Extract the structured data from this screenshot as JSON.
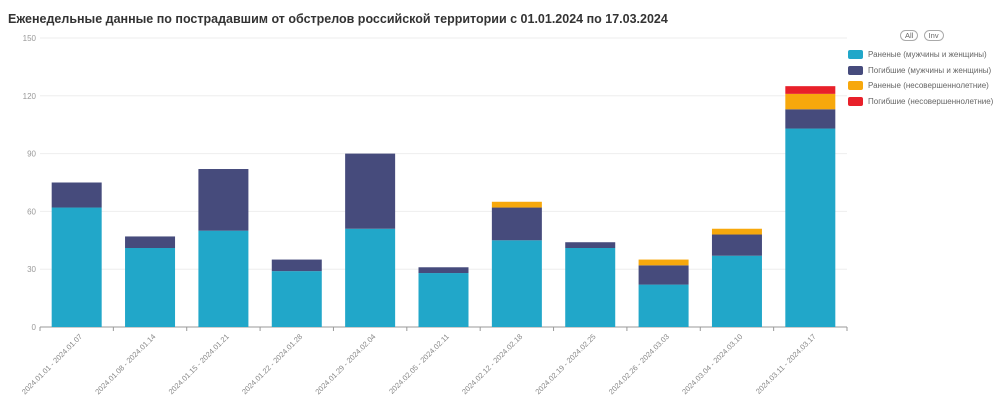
{
  "title": "Еженедельные данные по пострадавшим от обстрелов российской территории с 01.01.2024 по 17.03.2024",
  "legend_buttons": {
    "all": "All",
    "inv": "Inv"
  },
  "chart_data": {
    "type": "bar",
    "stacked": true,
    "title": "Еженедельные данные по пострадавшим от обстрелов российской территории с 01.01.2024 по 17.03.2024",
    "xlabel": "",
    "ylabel": "",
    "ylim": [
      0,
      150
    ],
    "yticks": [
      0,
      30,
      60,
      90,
      120,
      150
    ],
    "grid": true,
    "legend_placement": "top-right",
    "categories": [
      "2024.01.01 - 2024.01.07",
      "2024.01.08 - 2024.01.14",
      "2024.01.15 - 2024.01.21",
      "2024.01.22 - 2024.01.28",
      "2024.01.29 - 2024.02.04",
      "2024.02.05 - 2024.02.11",
      "2024.02.12 - 2024.02.18",
      "2024.02.19 - 2024.02.25",
      "2024.02.26 - 2024.03.03",
      "2024.03.04 - 2024.03.10",
      "2024.03.11 - 2024.03.17"
    ],
    "series": [
      {
        "name": "Раненые (мужчины и женщины)",
        "color": "#21a7c9",
        "values": [
          62,
          41,
          50,
          29,
          51,
          28,
          45,
          41,
          22,
          37,
          103
        ]
      },
      {
        "name": "Погибшие (мужчины и женщины)",
        "color": "#464b7c",
        "values": [
          13,
          6,
          32,
          6,
          39,
          3,
          17,
          3,
          10,
          11,
          10
        ]
      },
      {
        "name": "Раненые (несовершеннолетние)",
        "color": "#f7a80c",
        "values": [
          0,
          0,
          0,
          0,
          0,
          0,
          3,
          0,
          3,
          3,
          8
        ]
      },
      {
        "name": "Погибшие (несовершеннолетние)",
        "color": "#e8202a",
        "values": [
          0,
          0,
          0,
          0,
          0,
          0,
          0,
          0,
          0,
          0,
          4
        ]
      }
    ]
  }
}
